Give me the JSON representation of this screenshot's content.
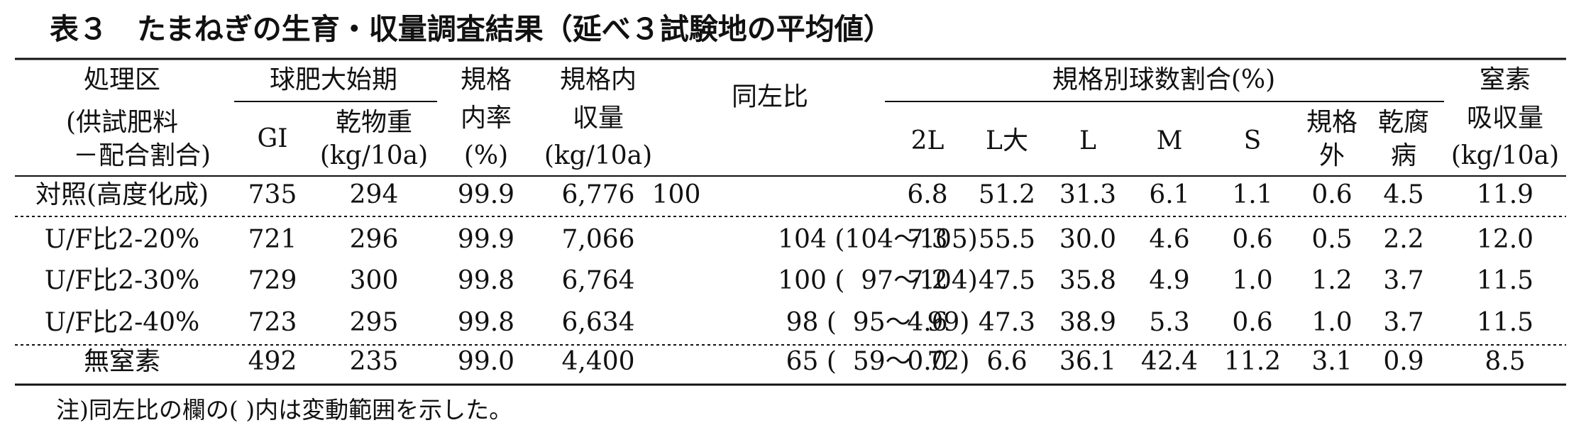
{
  "title": "表３　たまねぎの生育・収量調査結果（延べ３試験地の平均値）",
  "table": {
    "header": {
      "treatment": [
        "処理区",
        "(供試肥料",
        "－配合割合)"
      ],
      "bulb_stage": "球肥大始期",
      "gi": "GI",
      "dry_weight": [
        "乾物重",
        "(kg/10a)"
      ],
      "grade_rate": [
        "規格",
        "内率",
        "(%)"
      ],
      "grade_yield": [
        "規格内",
        "収量",
        "(kg/10a)"
      ],
      "ratio": "同左比",
      "size_ratio": "規格別球数割合(%)",
      "sizes": [
        "2L",
        "L大",
        "L",
        "M",
        "S"
      ],
      "off_grade": [
        "規格",
        "外"
      ],
      "rot": [
        "乾腐",
        "病"
      ],
      "nitrogen": [
        "窒素",
        "吸収量",
        "(kg/10a)"
      ]
    },
    "rows": [
      [
        "対照(高度化成)",
        "735",
        "294",
        "99.9",
        "6,776",
        "100",
        "6.8",
        "51.2",
        "31.3",
        "6.1",
        "1.1",
        "0.6",
        "4.5",
        "11.9"
      ],
      [
        "U/F比2-20%",
        "721",
        "296",
        "99.9",
        "7,066",
        "104 (104～105)",
        "7.3",
        "55.5",
        "30.0",
        "4.6",
        "0.6",
        "0.5",
        "2.2",
        "12.0"
      ],
      [
        "U/F比2-30%",
        "729",
        "300",
        "99.8",
        "6,764",
        "100 (  97～104)",
        "7.2",
        "47.5",
        "35.8",
        "4.9",
        "1.0",
        "1.2",
        "3.7",
        "11.5"
      ],
      [
        "U/F比2-40%",
        "723",
        "295",
        "99.8",
        "6,634",
        "98 (  95～  99)",
        "4.6",
        "47.3",
        "38.9",
        "5.3",
        "0.6",
        "1.0",
        "3.7",
        "11.5"
      ],
      [
        "無窒素",
        "492",
        "235",
        "99.0",
        "4,400",
        "65 (  59～  72)",
        "0.0",
        "6.6",
        "36.1",
        "42.4",
        "11.2",
        "3.1",
        "0.9",
        "8.5"
      ]
    ]
  },
  "note": "注)同左比の欄の( )内は変動範囲を示した。"
}
